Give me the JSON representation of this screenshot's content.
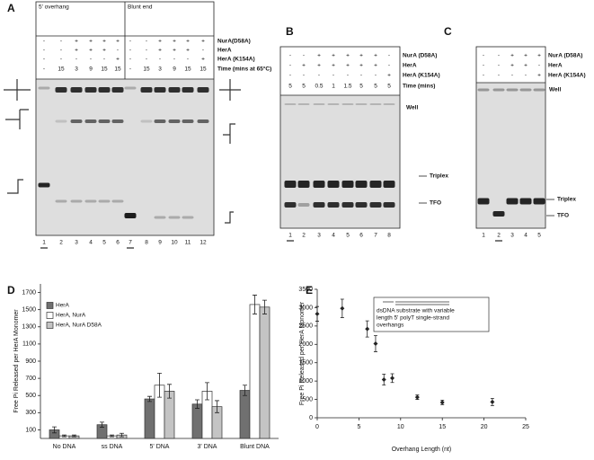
{
  "panel_labels": [
    "A",
    "B",
    "C",
    "D",
    "E"
  ],
  "gel_a": {
    "groups": [
      "5' overhang",
      "Blunt end"
    ],
    "rows": [
      {
        "label": "NurA(D58A)",
        "cells": [
          "-",
          "-",
          "+",
          "+",
          "+",
          "+",
          "-",
          "-",
          "+",
          "+",
          "+",
          "+"
        ]
      },
      {
        "label": "HerA",
        "cells": [
          "-",
          "-",
          "+",
          "+",
          "+",
          "-",
          "-",
          "-",
          "+",
          "+",
          "+",
          "-"
        ]
      },
      {
        "label": "HerA (K154A)",
        "cells": [
          "-",
          "-",
          "-",
          "-",
          "-",
          "+",
          "-",
          "-",
          "-",
          "-",
          "-",
          "+"
        ]
      },
      {
        "label": "Time (mins at 65°C)",
        "cells": [
          "-",
          "15",
          "3",
          "9",
          "15",
          "15",
          "-",
          "15",
          "3",
          "9",
          "15",
          "15"
        ]
      }
    ],
    "lanes": [
      "1",
      "2",
      "3",
      "4",
      "5",
      "6",
      "7",
      "8",
      "9",
      "10",
      "11",
      "12"
    ]
  },
  "gel_b": {
    "rows": [
      {
        "label": "NurA (D58A)",
        "cells": [
          "-",
          "-",
          "+",
          "+",
          "+",
          "+",
          "+",
          "-"
        ]
      },
      {
        "label": "HerA",
        "cells": [
          "-",
          "+",
          "+",
          "+",
          "+",
          "+",
          "+",
          "-"
        ]
      },
      {
        "label": "HerA (K154A)",
        "cells": [
          "-",
          "-",
          "-",
          "-",
          "-",
          "-",
          "-",
          "+"
        ]
      },
      {
        "label": "Time (mins)",
        "cells": [
          "5",
          "5",
          "0.5",
          "1",
          "1.5",
          "5",
          "5",
          "5"
        ]
      }
    ],
    "lanes": [
      "1",
      "2",
      "3",
      "4",
      "5",
      "6",
      "7",
      "8"
    ],
    "annotations": [
      "Well",
      "Triplex",
      "TFO"
    ]
  },
  "gel_c": {
    "rows": [
      {
        "label": "NurA (D58A)",
        "cells": [
          "-",
          "-",
          "+",
          "+",
          "+"
        ]
      },
      {
        "label": "HerA",
        "cells": [
          "-",
          "-",
          "+",
          "+",
          "-"
        ]
      },
      {
        "label": "HerA (K154A)",
        "cells": [
          "-",
          "-",
          "-",
          "-",
          "+"
        ]
      }
    ],
    "lanes": [
      "1",
      "2",
      "3",
      "4",
      "5"
    ],
    "annotations": [
      "Well",
      "Triplex",
      "TFO"
    ]
  },
  "chart_data": [
    {
      "type": "bar",
      "ylabel": "Free Pi Released per HerA Monomer",
      "categories": [
        "No DNA",
        "ss DNA",
        "5' DNA",
        "3' DNA",
        "Blunt DNA"
      ],
      "series": [
        {
          "name": "HerA",
          "color": "#707070",
          "values": [
            100,
            160,
            460,
            400,
            560
          ],
          "errors": [
            35,
            30,
            30,
            50,
            60
          ]
        },
        {
          "name": "HerA, NurA",
          "color": "#ffffff",
          "values": [
            30,
            30,
            620,
            550,
            1560
          ],
          "errors": [
            10,
            10,
            140,
            100,
            110
          ]
        },
        {
          "name": "HerA, NurA D58A",
          "color": "#c4c4c4",
          "values": [
            30,
            40,
            550,
            370,
            1530
          ],
          "errors": [
            10,
            20,
            80,
            70,
            80
          ]
        }
      ],
      "ylim": [
        0,
        1800
      ],
      "yticks": [
        100,
        300,
        500,
        700,
        900,
        1100,
        1300,
        1500,
        1700
      ],
      "legend": "upper left"
    },
    {
      "type": "scatter",
      "xlabel": "Overhang Length (nt)",
      "ylabel": "Free Pi Released per HerA Monomer",
      "annotation_lines": [
        "dsDNA substrate with variable",
        "length 5' polyT single-strand",
        "overhangs"
      ],
      "x": [
        0,
        3,
        6,
        7,
        8,
        9,
        12,
        15,
        21
      ],
      "values": [
        2830,
        2980,
        2420,
        2020,
        1040,
        1080,
        560,
        420,
        430
      ],
      "errors": [
        200,
        250,
        220,
        220,
        150,
        120,
        60,
        60,
        100
      ],
      "color": "#222222",
      "xlim": [
        0,
        25
      ],
      "xticks": [
        0,
        5,
        10,
        15,
        20,
        25
      ],
      "ylim": [
        0,
        3500
      ],
      "yticks": [
        0,
        500,
        1000,
        1500,
        2000,
        2500,
        3000,
        3500
      ]
    }
  ]
}
